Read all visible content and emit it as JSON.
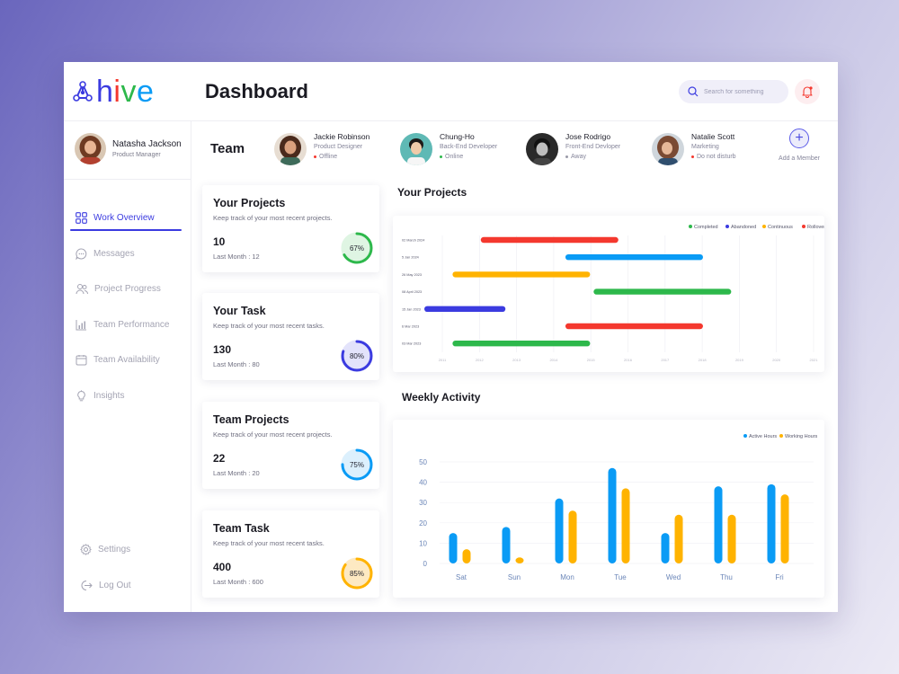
{
  "app": {
    "logo_text": "hive",
    "page_title": "Dashboard",
    "colors": {
      "accent": "#3b3be0",
      "completed": "#2db84b",
      "abandoned": "#3b3be0",
      "continuous": "#ffb300",
      "rollover": "#f4382e",
      "active": "#0a9bf5",
      "working": "#ffb300"
    }
  },
  "header": {
    "search_placeholder": "Search for something",
    "search_icon": "search-icon",
    "bell_icon": "bell-icon"
  },
  "profile": {
    "name": "Natasha Jackson",
    "role": "Product Manager"
  },
  "sidebar": {
    "items": [
      {
        "label": "Work Overview",
        "icon": "grid-icon",
        "active": true
      },
      {
        "label": "Messages",
        "icon": "chat-icon"
      },
      {
        "label": "Project Progress",
        "icon": "users-icon"
      },
      {
        "label": "Team Performance",
        "icon": "chart-icon"
      },
      {
        "label": "Team Availability",
        "icon": "calendar-icon"
      },
      {
        "label": "Insights",
        "icon": "bulb-icon"
      }
    ],
    "bottom": [
      {
        "label": "Settings",
        "icon": "gear-icon"
      },
      {
        "label": "Log Out",
        "icon": "logout-icon"
      }
    ]
  },
  "team": {
    "title": "Team",
    "members": [
      {
        "name": "Jackie Robinson",
        "role": "Product Designer",
        "status": "Offline",
        "status_color": "#f4382e"
      },
      {
        "name": "Chung-Ho",
        "role": "Back-End Developer",
        "status": "Online",
        "status_color": "#2db84b"
      },
      {
        "name": "Jose Rodrigo",
        "role": "Front-End Devloper",
        "status": "Away",
        "status_color": "#9a9aa8"
      },
      {
        "name": "Natalie Scott",
        "role": "Marketing",
        "status": "Do not disturb",
        "status_color": "#f4382e"
      }
    ],
    "add_label": "Add a Member"
  },
  "cards": [
    {
      "title": "Your Projects",
      "sub": "Keep track of your most recent projects.",
      "value": "10",
      "last": "Last Month : 12",
      "percent": 67,
      "percent_label": "67%",
      "ring_color": "#2db84b",
      "ring_bg": "#dff5e3"
    },
    {
      "title": "Your Task",
      "sub": "Keep track of your most recent tasks.",
      "value": "130",
      "last": "Last Month : 80",
      "percent": 80,
      "percent_label": "80%",
      "ring_color": "#3b3be0",
      "ring_bg": "#e3e3fb"
    },
    {
      "title": "Team Projects",
      "sub": "Keep track of your most recent projects.",
      "value": "22",
      "last": "Last Month : 20",
      "percent": 75,
      "percent_label": "75%",
      "ring_color": "#0a9bf5",
      "ring_bg": "#dcf0fd"
    },
    {
      "title": "Team Task",
      "sub": "Keep track of your most recent tasks.",
      "value": "400",
      "last": "Last Month : 600",
      "percent": 85,
      "percent_label": "85%",
      "ring_color": "#ffb300",
      "ring_bg": "#fde9c2"
    }
  ],
  "sections": {
    "projects_title": "Your Projects",
    "activity_title": "Weekly Activity"
  },
  "chart_data": [
    {
      "type": "gantt",
      "legend": [
        "Completed",
        "Abandoned",
        "Continuous",
        "Rollover"
      ],
      "rows": [
        {
          "label": "02 March 2024",
          "start": 1.6,
          "end": 5.5,
          "series": "Rollover"
        },
        {
          "label": "5 Jan 2024",
          "start": 4.0,
          "end": 7.9,
          "series": "Abandoned-blue"
        },
        {
          "label": "26 May 2023",
          "start": 0.8,
          "end": 4.7,
          "series": "Continuous"
        },
        {
          "label": "08 April 2023",
          "start": 4.8,
          "end": 8.7,
          "series": "Completed"
        },
        {
          "label": "15 Jan 2023",
          "start": 0.0,
          "end": 2.3,
          "series": "Abandoned"
        },
        {
          "label": "6 Mar 2023",
          "start": 4.0,
          "end": 7.9,
          "series": "Rollover"
        },
        {
          "label": "03 Mar 2023",
          "start": 0.8,
          "end": 4.7,
          "series": "Completed"
        }
      ],
      "series_colors": {
        "Completed": "#2db84b",
        "Abandoned": "#3b3be0",
        "Abandoned-blue": "#0a9bf5",
        "Continuous": "#ffb300",
        "Rollover": "#f4382e"
      },
      "x_ticks": [
        "2011",
        "2012",
        "2013",
        "2014",
        "2015",
        "2016",
        "2017",
        "2018",
        "2019",
        "2020",
        "2021"
      ]
    },
    {
      "type": "bar",
      "categories": [
        "Sat",
        "Sun",
        "Mon",
        "Tue",
        "Wed",
        "Thu",
        "Fri"
      ],
      "series": [
        {
          "name": "Active Hours",
          "values": [
            15,
            18,
            32,
            47,
            15,
            38,
            39
          ]
        },
        {
          "name": "Working Hours",
          "values": [
            7,
            3,
            26,
            37,
            24,
            24,
            34
          ]
        }
      ],
      "ylim": [
        0,
        50
      ],
      "yticks": [
        0,
        10,
        20,
        30,
        40,
        50
      ]
    }
  ]
}
